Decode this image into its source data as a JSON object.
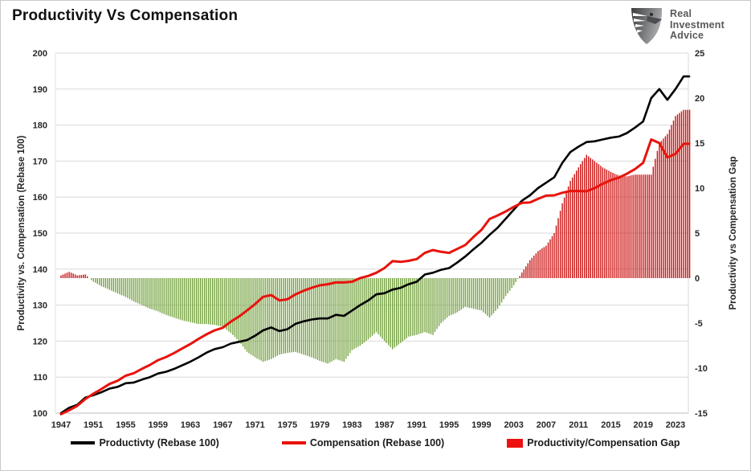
{
  "title": "Productivity Vs Compensation",
  "logo": {
    "line1": "Real",
    "line2": "Investment",
    "line3": "Advice"
  },
  "legend": [
    {
      "label": "Productivty (Rebase 100)",
      "type": "line",
      "color": "#000000"
    },
    {
      "label": "Compensation (Rebase 100)",
      "type": "line",
      "color": "#e8130c"
    },
    {
      "label": "Productivity/Compensation Gap",
      "type": "bar",
      "color": "#ee1111"
    }
  ],
  "chart_data": {
    "type": "combo (two lines on left axis + bar series on right axis)",
    "title": "Productivity Vs Compensation",
    "x": [
      1947,
      1948,
      1949,
      1950,
      1951,
      1952,
      1953,
      1954,
      1955,
      1956,
      1957,
      1958,
      1959,
      1960,
      1961,
      1962,
      1963,
      1964,
      1965,
      1966,
      1967,
      1968,
      1969,
      1970,
      1971,
      1972,
      1973,
      1974,
      1975,
      1976,
      1977,
      1978,
      1979,
      1980,
      1981,
      1982,
      1983,
      1984,
      1985,
      1986,
      1987,
      1988,
      1989,
      1990,
      1991,
      1992,
      1993,
      1994,
      1995,
      1996,
      1997,
      1998,
      1999,
      2000,
      2001,
      2002,
      2003,
      2004,
      2005,
      2006,
      2007,
      2008,
      2009,
      2010,
      2011,
      2012,
      2013,
      2014,
      2015,
      2016,
      2017,
      2018,
      2019,
      2020,
      2021,
      2022,
      2023,
      2024
    ],
    "series": [
      {
        "name": "Productivty (Rebase 100)",
        "type": "line",
        "axis": "left",
        "color": "#000000",
        "values": [
          100.0,
          101.5,
          102.3,
          104.3,
          105.0,
          105.8,
          106.8,
          107.3,
          108.3,
          108.5,
          109.3,
          110.0,
          111.0,
          111.5,
          112.3,
          113.3,
          114.3,
          115.5,
          116.8,
          117.8,
          118.3,
          119.3,
          119.8,
          120.3,
          121.5,
          123.0,
          123.8,
          122.8,
          123.3,
          124.8,
          125.5,
          126.0,
          126.3,
          126.3,
          127.3,
          127.0,
          128.5,
          130.0,
          131.3,
          133.0,
          133.3,
          134.3,
          134.8,
          135.8,
          136.5,
          138.5,
          139.0,
          139.8,
          140.3,
          141.8,
          143.5,
          145.5,
          147.3,
          149.5,
          151.5,
          154.0,
          156.5,
          159.0,
          160.5,
          162.5,
          164.0,
          165.5,
          169.5,
          172.5,
          174.0,
          175.3,
          175.5,
          176.0,
          176.5,
          176.8,
          177.8,
          179.3,
          181.0,
          187.5,
          190.0,
          187.0,
          190.0,
          193.5
        ]
      },
      {
        "name": "Compensation (Rebase 100)",
        "type": "line",
        "axis": "left",
        "color": "#e8130c",
        "values": [
          99.7,
          100.8,
          102.0,
          103.9,
          105.4,
          106.7,
          108.1,
          109.0,
          110.4,
          111.1,
          112.3,
          113.4,
          114.7,
          115.6,
          116.7,
          118.0,
          119.2,
          120.6,
          121.9,
          123.0,
          123.7,
          125.4,
          126.8,
          128.5,
          130.3,
          132.3,
          132.8,
          131.3,
          131.6,
          133.0,
          134.0,
          134.8,
          135.5,
          135.8,
          136.3,
          136.3,
          136.5,
          137.5,
          138.1,
          139.0,
          140.3,
          142.2,
          142.0,
          142.3,
          142.8,
          144.5,
          145.3,
          144.8,
          144.5,
          145.6,
          146.7,
          148.9,
          150.9,
          153.9,
          154.9,
          156.0,
          157.3,
          158.4,
          158.5,
          159.5,
          160.4,
          160.5,
          161.2,
          161.7,
          161.7,
          161.6,
          162.5,
          163.7,
          164.7,
          165.4,
          166.5,
          167.8,
          169.5,
          176.0,
          175.0,
          171.0,
          172.0,
          174.8
        ]
      },
      {
        "name": "Productivity/Compensation Gap",
        "type": "bar",
        "axis": "right",
        "color_positive": "#c9100f",
        "color_negative": "#74a23f",
        "values": [
          0.3,
          0.7,
          0.3,
          0.4,
          -0.4,
          -0.9,
          -1.3,
          -1.7,
          -2.1,
          -2.6,
          -3.0,
          -3.4,
          -3.7,
          -4.1,
          -4.4,
          -4.7,
          -4.9,
          -5.1,
          -5.1,
          -5.2,
          -5.4,
          -6.1,
          -7.0,
          -8.2,
          -8.8,
          -9.3,
          -9.0,
          -8.5,
          -8.3,
          -8.2,
          -8.5,
          -8.8,
          -9.2,
          -9.5,
          -9.0,
          -9.3,
          -8.0,
          -7.5,
          -6.8,
          -6.0,
          -7.0,
          -7.9,
          -7.2,
          -6.5,
          -6.3,
          -6.0,
          -6.3,
          -5.0,
          -4.2,
          -3.8,
          -3.2,
          -3.4,
          -3.6,
          -4.4,
          -3.4,
          -2.0,
          -0.8,
          0.6,
          2.0,
          3.0,
          3.6,
          5.0,
          8.3,
          10.8,
          12.3,
          13.7,
          13.0,
          12.3,
          11.8,
          11.4,
          11.3,
          11.5,
          11.5,
          11.5,
          15.0,
          16.0,
          18.0,
          18.7
        ]
      }
    ],
    "left_axis": {
      "label": "Productivity vs. Compensation (Rebase 100)",
      "min": 100,
      "max": 200,
      "tick_step": 10
    },
    "right_axis": {
      "label": "Productivity vs Compensation Gap",
      "min": -15,
      "max": 25,
      "tick_step": 5
    },
    "x_axis": {
      "tick_start": 1947,
      "tick_end": 2023,
      "tick_step": 4
    },
    "grid": "horizontal",
    "legend_position": "bottom"
  }
}
